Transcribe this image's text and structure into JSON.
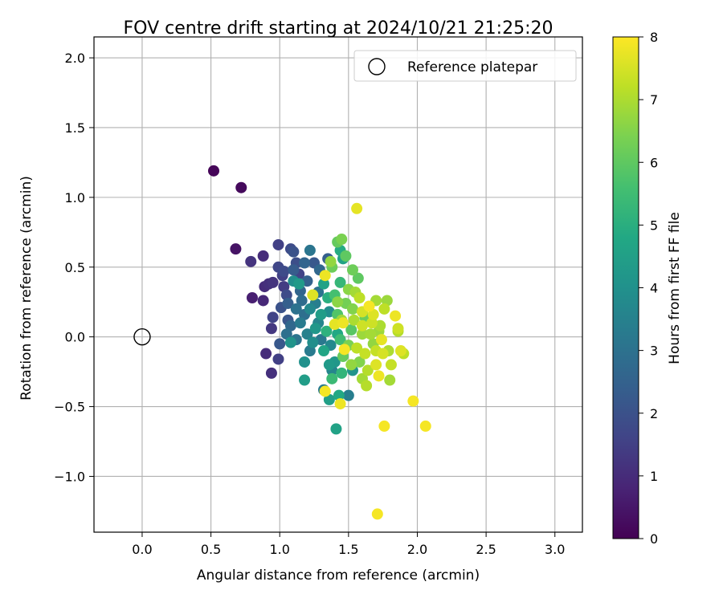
{
  "chart_data": {
    "type": "scatter",
    "title": "FOV centre drift starting at 2024/10/21 21:25:20",
    "xlabel": "Angular distance from reference (arcmin)",
    "ylabel": "Rotation from reference (arcmin)",
    "xlim": [
      -0.35,
      3.2
    ],
    "ylim": [
      -1.4,
      2.15
    ],
    "xticks": [
      "0.0",
      "0.5",
      "1.0",
      "1.5",
      "2.0",
      "2.5",
      "3.0"
    ],
    "yticks": [
      "−1.0",
      "−0.5",
      "0.0",
      "0.5",
      "1.0",
      "1.5",
      "2.0"
    ],
    "grid": true,
    "legend": {
      "placement": "top-right",
      "entries": [
        "Reference platepar"
      ]
    },
    "reference_point": {
      "x": 0.0,
      "y": 0.0
    },
    "colorbar": {
      "label": "Hours from first FF file",
      "range": [
        0,
        8
      ],
      "ticks": [
        "0",
        "1",
        "2",
        "3",
        "4",
        "5",
        "6",
        "7",
        "8"
      ],
      "colormap": "viridis"
    },
    "points": [
      {
        "x": 0.52,
        "y": 1.19,
        "h": 0.1
      },
      {
        "x": 0.72,
        "y": 1.07,
        "h": 0.2
      },
      {
        "x": 0.68,
        "y": 0.63,
        "h": 0.4
      },
      {
        "x": 0.8,
        "y": 0.28,
        "h": 0.7
      },
      {
        "x": 0.88,
        "y": 0.58,
        "h": 1.0
      },
      {
        "x": 0.79,
        "y": 0.54,
        "h": 1.2
      },
      {
        "x": 0.89,
        "y": 0.36,
        "h": 1.0
      },
      {
        "x": 0.92,
        "y": 0.38,
        "h": 1.1
      },
      {
        "x": 0.88,
        "y": 0.26,
        "h": 0.9
      },
      {
        "x": 0.9,
        "y": -0.12,
        "h": 1.0
      },
      {
        "x": 0.94,
        "y": -0.26,
        "h": 1.1
      },
      {
        "x": 0.99,
        "y": -0.16,
        "h": 1.5
      },
      {
        "x": 0.94,
        "y": 0.06,
        "h": 1.3
      },
      {
        "x": 0.95,
        "y": 0.14,
        "h": 1.6
      },
      {
        "x": 0.95,
        "y": 0.39,
        "h": 1.2
      },
      {
        "x": 0.99,
        "y": 0.66,
        "h": 1.5
      },
      {
        "x": 0.99,
        "y": 0.5,
        "h": 1.7
      },
      {
        "x": 1.02,
        "y": 0.44,
        "h": 1.5
      },
      {
        "x": 1.03,
        "y": 0.36,
        "h": 1.4
      },
      {
        "x": 1.05,
        "y": 0.3,
        "h": 1.8
      },
      {
        "x": 1.01,
        "y": 0.21,
        "h": 2.0
      },
      {
        "x": 1.0,
        "y": -0.05,
        "h": 2.2
      },
      {
        "x": 1.06,
        "y": 0.12,
        "h": 2.1
      },
      {
        "x": 1.08,
        "y": 0.63,
        "h": 1.8
      },
      {
        "x": 1.1,
        "y": 0.61,
        "h": 2.0
      },
      {
        "x": 1.12,
        "y": 0.53,
        "h": 1.9
      },
      {
        "x": 1.1,
        "y": 0.48,
        "h": 2.3
      },
      {
        "x": 1.14,
        "y": 0.45,
        "h": 1.6
      },
      {
        "x": 1.18,
        "y": 0.53,
        "h": 2.6
      },
      {
        "x": 1.22,
        "y": 0.62,
        "h": 3.1
      },
      {
        "x": 1.25,
        "y": 0.53,
        "h": 2.2
      },
      {
        "x": 1.29,
        "y": 0.48,
        "h": 2.7
      },
      {
        "x": 1.35,
        "y": 0.56,
        "h": 2.4
      },
      {
        "x": 1.05,
        "y": 0.02,
        "h": 2.9
      },
      {
        "x": 1.08,
        "y": -0.04,
        "h": 4.1
      },
      {
        "x": 1.12,
        "y": 0.2,
        "h": 3.0
      },
      {
        "x": 1.15,
        "y": 0.33,
        "h": 2.6
      },
      {
        "x": 1.1,
        "y": 0.4,
        "h": 3.9
      },
      {
        "x": 1.14,
        "y": 0.38,
        "h": 4.3
      },
      {
        "x": 1.18,
        "y": 0.16,
        "h": 2.9
      },
      {
        "x": 1.2,
        "y": 0.02,
        "h": 3.5
      },
      {
        "x": 1.22,
        "y": -0.1,
        "h": 3.3
      },
      {
        "x": 1.18,
        "y": -0.18,
        "h": 4.0
      },
      {
        "x": 1.18,
        "y": -0.31,
        "h": 4.4
      },
      {
        "x": 1.24,
        "y": 0.3,
        "h": 7.6
      },
      {
        "x": 1.26,
        "y": 0.24,
        "h": 3.4
      },
      {
        "x": 1.28,
        "y": 0.1,
        "h": 3.6
      },
      {
        "x": 1.3,
        "y": -0.02,
        "h": 3.2
      },
      {
        "x": 1.32,
        "y": 0.38,
        "h": 4.6
      },
      {
        "x": 1.33,
        "y": 0.44,
        "h": 7.8
      },
      {
        "x": 1.35,
        "y": 0.28,
        "h": 5.0
      },
      {
        "x": 1.36,
        "y": 0.18,
        "h": 3.9
      },
      {
        "x": 1.37,
        "y": -0.06,
        "h": 3.7
      },
      {
        "x": 1.32,
        "y": -0.38,
        "h": 3.3
      },
      {
        "x": 1.33,
        "y": -0.39,
        "h": 7.9
      },
      {
        "x": 1.36,
        "y": -0.45,
        "h": 4.5
      },
      {
        "x": 1.38,
        "y": -0.24,
        "h": 3.6
      },
      {
        "x": 1.4,
        "y": -0.18,
        "h": 4.2
      },
      {
        "x": 1.4,
        "y": 0.09,
        "h": 7.7
      },
      {
        "x": 1.42,
        "y": 0.02,
        "h": 4.8
      },
      {
        "x": 1.38,
        "y": 0.5,
        "h": 6.2
      },
      {
        "x": 1.37,
        "y": 0.54,
        "h": 6.7
      },
      {
        "x": 1.42,
        "y": 0.68,
        "h": 6.1
      },
      {
        "x": 1.45,
        "y": 0.7,
        "h": 6.4
      },
      {
        "x": 1.44,
        "y": 0.62,
        "h": 4.9
      },
      {
        "x": 1.46,
        "y": 0.56,
        "h": 4.6
      },
      {
        "x": 1.48,
        "y": 0.58,
        "h": 6.0
      },
      {
        "x": 1.44,
        "y": 0.39,
        "h": 5.3
      },
      {
        "x": 1.42,
        "y": 0.25,
        "h": 6.6
      },
      {
        "x": 1.45,
        "y": 0.12,
        "h": 6.8
      },
      {
        "x": 1.46,
        "y": 0.1,
        "h": 7.8
      },
      {
        "x": 1.47,
        "y": -0.09,
        "h": 7.9
      },
      {
        "x": 1.45,
        "y": -0.26,
        "h": 5.2
      },
      {
        "x": 1.43,
        "y": -0.42,
        "h": 4.8
      },
      {
        "x": 1.41,
        "y": -0.66,
        "h": 4.6
      },
      {
        "x": 1.44,
        "y": -0.48,
        "h": 7.8
      },
      {
        "x": 1.5,
        "y": -0.42,
        "h": 3.4
      },
      {
        "x": 1.53,
        "y": -0.24,
        "h": 4.1
      },
      {
        "x": 1.52,
        "y": 0.05,
        "h": 5.9
      },
      {
        "x": 1.53,
        "y": 0.2,
        "h": 6.5
      },
      {
        "x": 1.55,
        "y": 0.32,
        "h": 6.9
      },
      {
        "x": 1.53,
        "y": 0.48,
        "h": 6.2
      },
      {
        "x": 1.56,
        "y": 0.92,
        "h": 7.7
      },
      {
        "x": 1.57,
        "y": 0.42,
        "h": 6.0
      },
      {
        "x": 1.58,
        "y": 0.28,
        "h": 7.2
      },
      {
        "x": 1.6,
        "y": 0.18,
        "h": 7.5
      },
      {
        "x": 1.6,
        "y": 0.02,
        "h": 6.8
      },
      {
        "x": 1.62,
        "y": -0.12,
        "h": 7.3
      },
      {
        "x": 1.6,
        "y": -0.3,
        "h": 6.9
      },
      {
        "x": 1.63,
        "y": -0.35,
        "h": 7.1
      },
      {
        "x": 1.65,
        "y": 0.22,
        "h": 7.9
      },
      {
        "x": 1.67,
        "y": 0.1,
        "h": 7.4
      },
      {
        "x": 1.68,
        "y": -0.05,
        "h": 6.7
      },
      {
        "x": 1.7,
        "y": 0.26,
        "h": 6.9
      },
      {
        "x": 1.7,
        "y": -0.2,
        "h": 7.6
      },
      {
        "x": 1.72,
        "y": -0.28,
        "h": 7.8
      },
      {
        "x": 1.73,
        "y": 0.08,
        "h": 7.0
      },
      {
        "x": 1.75,
        "y": -0.12,
        "h": 7.5
      },
      {
        "x": 1.76,
        "y": 0.2,
        "h": 7.2
      },
      {
        "x": 1.76,
        "y": -0.64,
        "h": 7.9
      },
      {
        "x": 1.78,
        "y": 0.26,
        "h": 6.8
      },
      {
        "x": 1.79,
        "y": -0.1,
        "h": 7.0
      },
      {
        "x": 1.8,
        "y": -0.31,
        "h": 6.9
      },
      {
        "x": 1.81,
        "y": -0.2,
        "h": 7.3
      },
      {
        "x": 1.84,
        "y": 0.15,
        "h": 7.8
      },
      {
        "x": 1.86,
        "y": 0.06,
        "h": 7.4
      },
      {
        "x": 1.88,
        "y": -0.1,
        "h": 7.6
      },
      {
        "x": 1.9,
        "y": -0.12,
        "h": 7.2
      },
      {
        "x": 1.86,
        "y": 0.04,
        "h": 7.1
      },
      {
        "x": 1.97,
        "y": -0.46,
        "h": 7.9
      },
      {
        "x": 2.06,
        "y": -0.64,
        "h": 7.9
      },
      {
        "x": 1.71,
        "y": -1.27,
        "h": 7.9
      },
      {
        "x": 1.03,
        "y": 0.47,
        "h": 1.8
      },
      {
        "x": 1.06,
        "y": 0.24,
        "h": 2.4
      },
      {
        "x": 1.08,
        "y": 0.08,
        "h": 2.7
      },
      {
        "x": 1.12,
        "y": -0.02,
        "h": 3.1
      },
      {
        "x": 1.15,
        "y": 0.1,
        "h": 3.3
      },
      {
        "x": 1.16,
        "y": 0.26,
        "h": 2.8
      },
      {
        "x": 1.2,
        "y": 0.4,
        "h": 2.5
      },
      {
        "x": 1.22,
        "y": 0.2,
        "h": 3.7
      },
      {
        "x": 1.24,
        "y": -0.04,
        "h": 3.9
      },
      {
        "x": 1.26,
        "y": 0.06,
        "h": 4.2
      },
      {
        "x": 1.28,
        "y": 0.32,
        "h": 3.0
      },
      {
        "x": 1.3,
        "y": 0.16,
        "h": 4.4
      },
      {
        "x": 1.32,
        "y": -0.1,
        "h": 4.7
      },
      {
        "x": 1.34,
        "y": 0.04,
        "h": 5.1
      },
      {
        "x": 1.36,
        "y": -0.2,
        "h": 4.3
      },
      {
        "x": 1.38,
        "y": -0.3,
        "h": 5.4
      },
      {
        "x": 1.4,
        "y": 0.3,
        "h": 5.6
      },
      {
        "x": 1.42,
        "y": 0.16,
        "h": 5.8
      },
      {
        "x": 1.44,
        "y": -0.02,
        "h": 5.5
      },
      {
        "x": 1.46,
        "y": -0.14,
        "h": 6.1
      },
      {
        "x": 1.48,
        "y": 0.24,
        "h": 6.3
      },
      {
        "x": 1.5,
        "y": 0.34,
        "h": 6.6
      },
      {
        "x": 1.5,
        "y": -0.06,
        "h": 6.4
      },
      {
        "x": 1.52,
        "y": -0.2,
        "h": 6.7
      },
      {
        "x": 1.54,
        "y": 0.12,
        "h": 7.0
      },
      {
        "x": 1.56,
        "y": -0.08,
        "h": 7.2
      },
      {
        "x": 1.58,
        "y": -0.18,
        "h": 6.5
      },
      {
        "x": 1.6,
        "y": 0.08,
        "h": 7.4
      },
      {
        "x": 1.62,
        "y": 0.14,
        "h": 6.2
      },
      {
        "x": 1.64,
        "y": -0.24,
        "h": 7.1
      },
      {
        "x": 1.66,
        "y": 0.02,
        "h": 6.9
      },
      {
        "x": 1.68,
        "y": 0.16,
        "h": 7.6
      },
      {
        "x": 1.7,
        "y": -0.1,
        "h": 7.3
      },
      {
        "x": 1.72,
        "y": 0.04,
        "h": 6.8
      },
      {
        "x": 1.74,
        "y": -0.02,
        "h": 7.7
      }
    ]
  }
}
